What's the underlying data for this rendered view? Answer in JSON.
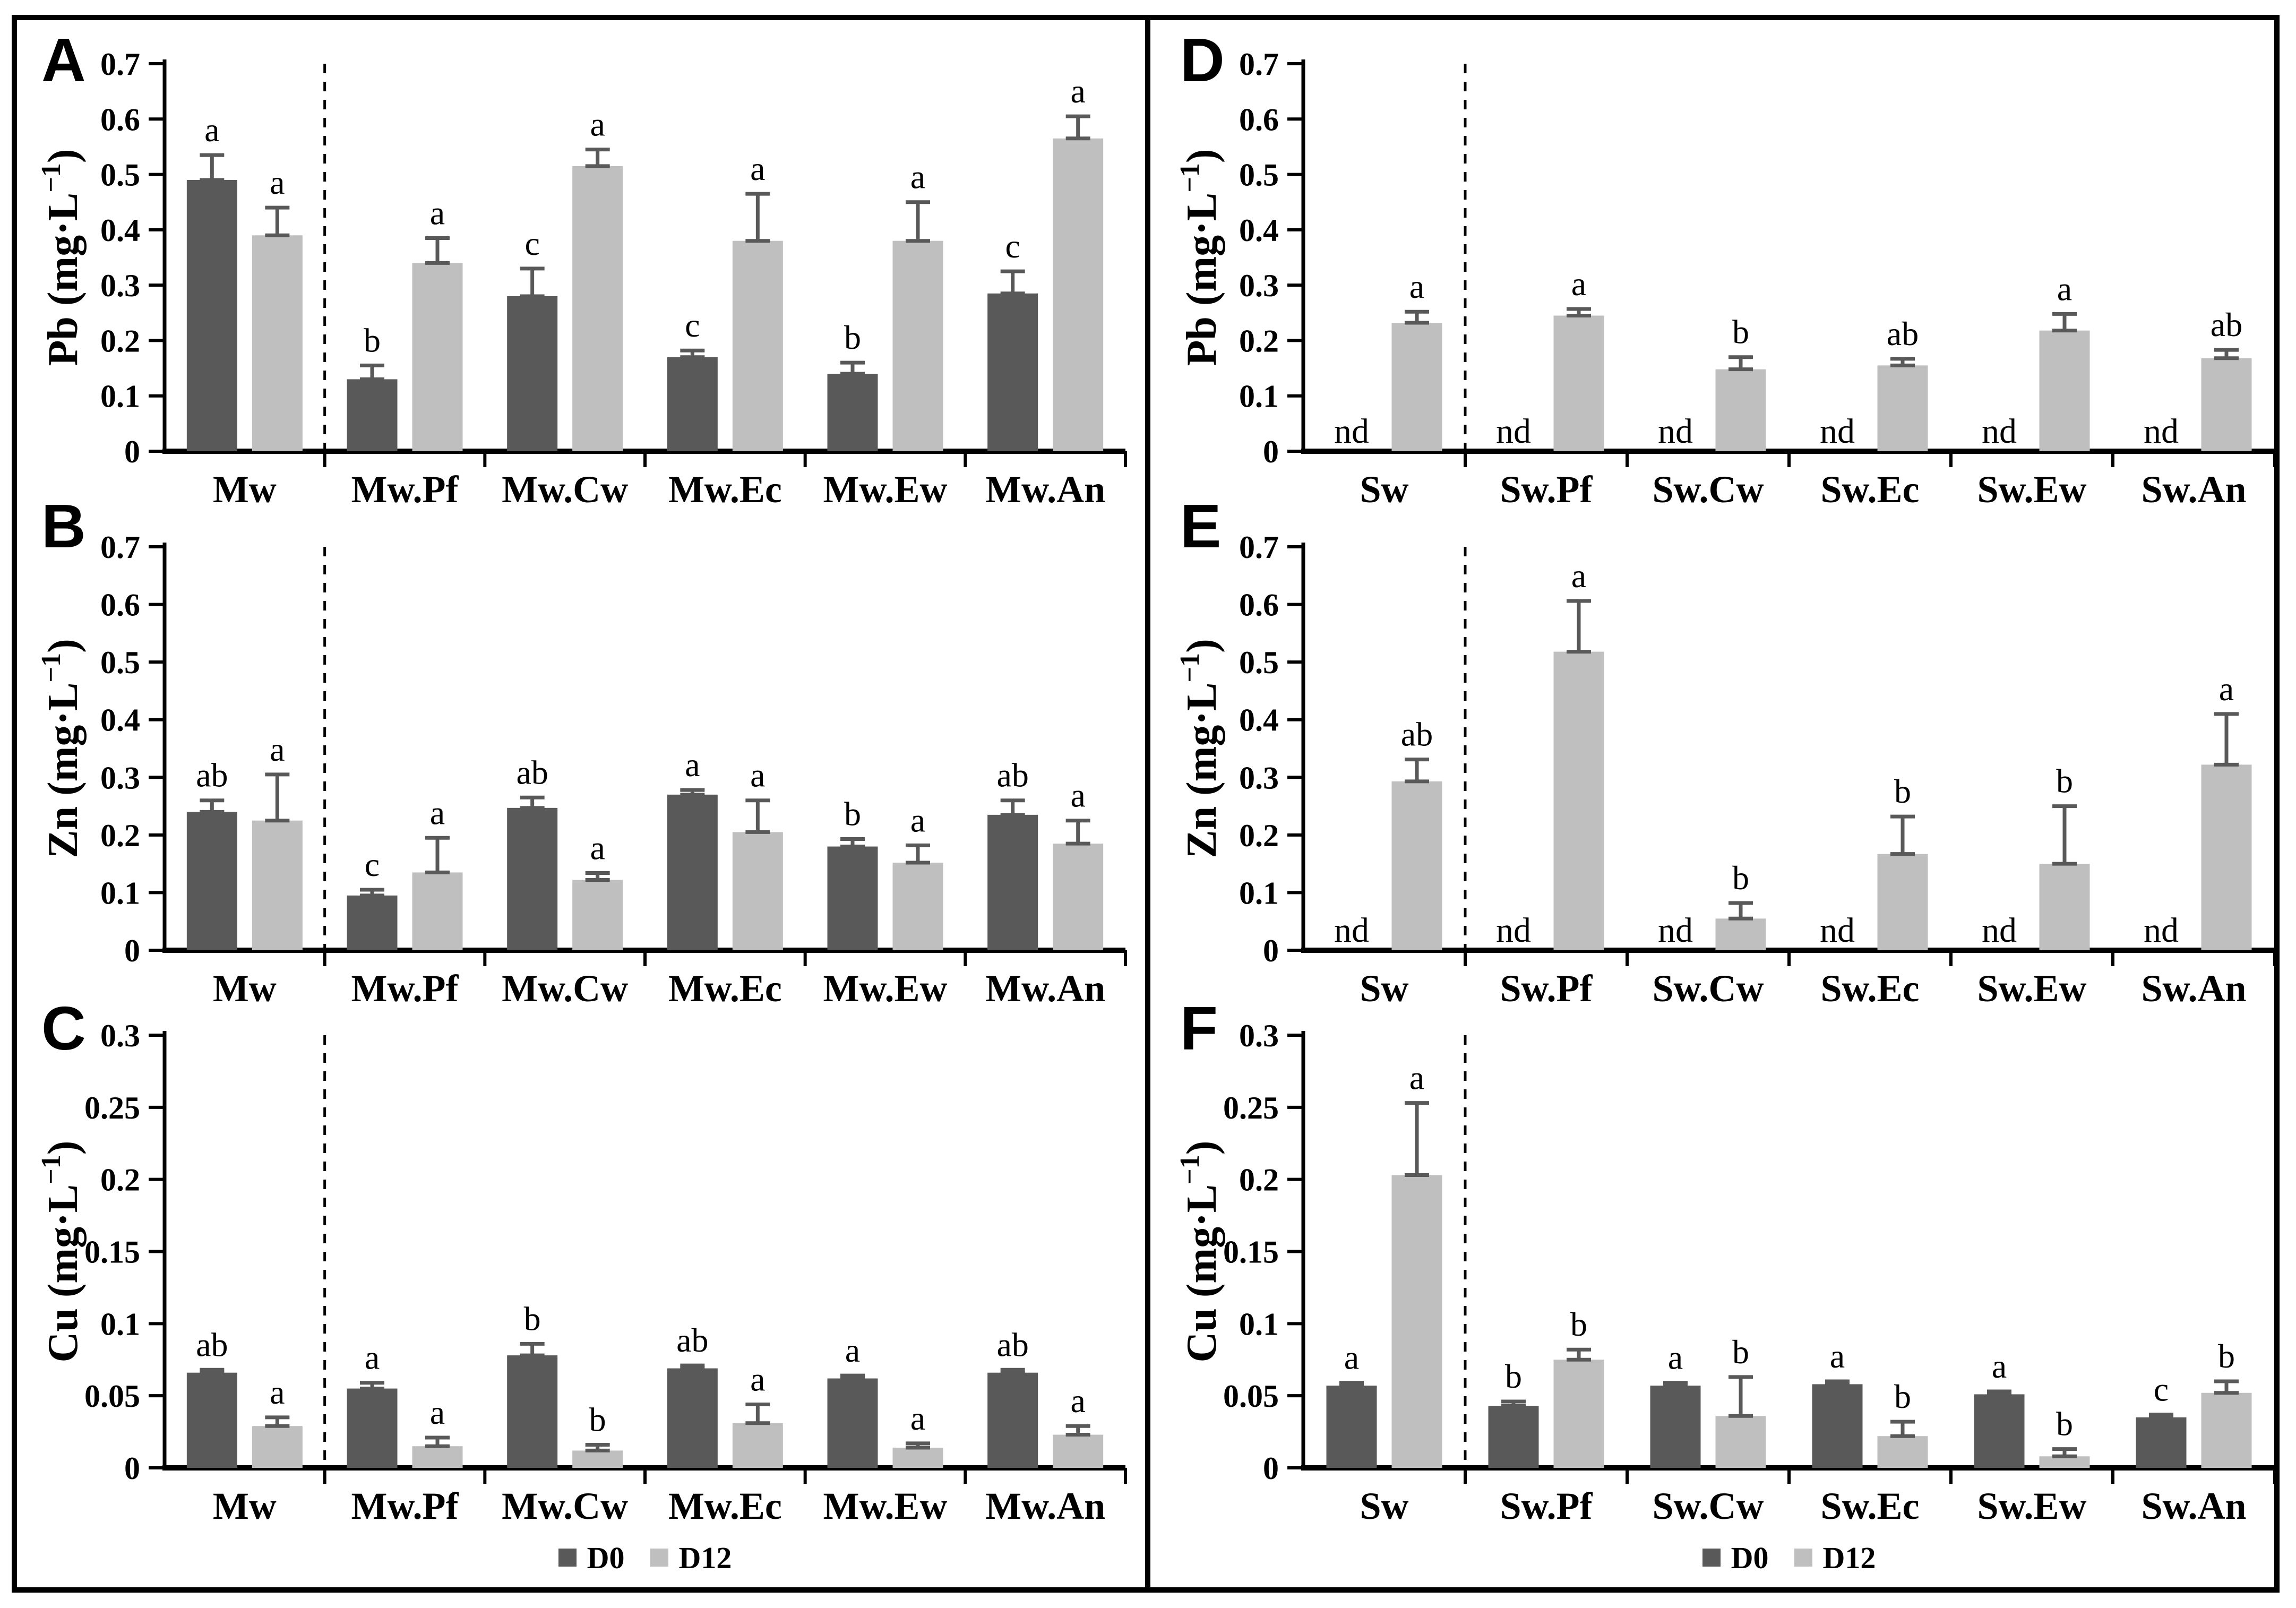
{
  "figure": {
    "legend": {
      "d0": "D0",
      "d12": "D12"
    },
    "colors": {
      "d0": "#595959",
      "d12": "#bfbfbf",
      "error": "#595959",
      "axis": "#000000"
    },
    "nd_label": "nd"
  },
  "chart_data": [
    {
      "type": "bar",
      "panel_letter": "A",
      "ylabel_pre": "Pb (mg·L",
      "ylabel_sup": "−1",
      "ylabel_post": ")",
      "ylim": [
        0,
        0.7
      ],
      "ystep": 0.1,
      "legend_position": "none",
      "grid": false,
      "categories": [
        "Mw",
        "Mw.Pf",
        "Mw.Cw",
        "Mw.Ec",
        "Mw.Ew",
        "Mw.An"
      ],
      "series": [
        {
          "name": "D0",
          "values": [
            0.49,
            0.13,
            0.28,
            0.17,
            0.14,
            0.285
          ],
          "errors": [
            0.045,
            0.025,
            0.05,
            0.012,
            0.02,
            0.04
          ],
          "sig_letters": [
            "a",
            "b",
            "c",
            "c",
            "b",
            "c"
          ]
        },
        {
          "name": "D12",
          "values": [
            0.39,
            0.34,
            0.515,
            0.38,
            0.38,
            0.565
          ],
          "errors": [
            0.05,
            0.045,
            0.03,
            0.085,
            0.07,
            0.04
          ],
          "sig_letters": [
            "a",
            "a",
            "a",
            "a",
            "a",
            "a"
          ]
        }
      ]
    },
    {
      "type": "bar",
      "panel_letter": "B",
      "ylabel_pre": "Zn (mg·L",
      "ylabel_sup": "−1",
      "ylabel_post": ")",
      "ylim": [
        0,
        0.7
      ],
      "ystep": 0.1,
      "legend_position": "none",
      "grid": false,
      "categories": [
        "Mw",
        "Mw.Pf",
        "Mw.Cw",
        "Mw.Ec",
        "Mw.Ew",
        "Mw.An"
      ],
      "series": [
        {
          "name": "D0",
          "values": [
            0.24,
            0.095,
            0.247,
            0.27,
            0.18,
            0.235
          ],
          "errors": [
            0.02,
            0.01,
            0.018,
            0.008,
            0.013,
            0.025
          ],
          "sig_letters": [
            "ab",
            "c",
            "ab",
            "a",
            "b",
            "ab"
          ]
        },
        {
          "name": "D12",
          "values": [
            0.225,
            0.135,
            0.122,
            0.205,
            0.152,
            0.185
          ],
          "errors": [
            0.08,
            0.06,
            0.012,
            0.055,
            0.03,
            0.04
          ],
          "sig_letters": [
            "a",
            "a",
            "a",
            "a",
            "a",
            "a"
          ]
        }
      ]
    },
    {
      "type": "bar",
      "panel_letter": "C",
      "ylabel_pre": "Cu (mg·L",
      "ylabel_sup": "−1",
      "ylabel_post": ")",
      "ylim": [
        0,
        0.3
      ],
      "ystep": 0.05,
      "legend_position": "bottom",
      "grid": false,
      "categories": [
        "Mw",
        "Mw.Pf",
        "Mw.Cw",
        "Mw.Ec",
        "Mw.Ew",
        "Mw.An"
      ],
      "series": [
        {
          "name": "D0",
          "values": [
            0.066,
            0.055,
            0.078,
            0.069,
            0.062,
            0.066
          ],
          "errors": [
            0.002,
            0.004,
            0.008,
            0.002,
            0.002,
            0.002
          ],
          "sig_letters": [
            "ab",
            "a",
            "b",
            "ab",
            "a",
            "ab"
          ]
        },
        {
          "name": "D12",
          "values": [
            0.029,
            0.015,
            0.012,
            0.031,
            0.014,
            0.023
          ],
          "errors": [
            0.006,
            0.006,
            0.004,
            0.013,
            0.003,
            0.006
          ],
          "sig_letters": [
            "a",
            "a",
            "b",
            "a",
            "a",
            "a"
          ]
        }
      ]
    },
    {
      "type": "bar",
      "panel_letter": "D",
      "ylabel_pre": "Pb (mg·L",
      "ylabel_sup": "−1",
      "ylabel_post": ")",
      "ylim": [
        0,
        0.7
      ],
      "ystep": 0.1,
      "legend_position": "none",
      "grid": false,
      "categories": [
        "Sw",
        "Sw.Pf",
        "Sw.Cw",
        "Sw.Ec",
        "Sw.Ew",
        "Sw.An"
      ],
      "series": [
        {
          "name": "D0",
          "values": null,
          "not_detected": true
        },
        {
          "name": "D12",
          "values": [
            0.232,
            0.245,
            0.148,
            0.155,
            0.218,
            0.168
          ],
          "errors": [
            0.02,
            0.012,
            0.022,
            0.012,
            0.03,
            0.015
          ],
          "sig_letters": [
            "a",
            "a",
            "b",
            "ab",
            "a",
            "ab"
          ]
        }
      ]
    },
    {
      "type": "bar",
      "panel_letter": "E",
      "ylabel_pre": "Zn (mg·L",
      "ylabel_sup": "−1",
      "ylabel_post": ")",
      "ylim": [
        0,
        0.7
      ],
      "ystep": 0.1,
      "legend_position": "none",
      "grid": false,
      "categories": [
        "Sw",
        "Sw.Pf",
        "Sw.Cw",
        "Sw.Ec",
        "Sw.Ew",
        "Sw.An"
      ],
      "series": [
        {
          "name": "D0",
          "values": null,
          "not_detected": true
        },
        {
          "name": "D12",
          "values": [
            0.293,
            0.518,
            0.055,
            0.167,
            0.15,
            0.322
          ],
          "errors": [
            0.038,
            0.088,
            0.027,
            0.065,
            0.1,
            0.088
          ],
          "sig_letters": [
            "ab",
            "a",
            "b",
            "b",
            "b",
            "a"
          ]
        }
      ]
    },
    {
      "type": "bar",
      "panel_letter": "F",
      "ylabel_pre": "Cu (mg·L",
      "ylabel_sup": "−1",
      "ylabel_post": ")",
      "ylim": [
        0,
        0.3
      ],
      "ystep": 0.05,
      "legend_position": "bottom",
      "grid": false,
      "categories": [
        "Sw",
        "Sw.Pf",
        "Sw.Cw",
        "Sw.Ec",
        "Sw.Ew",
        "Sw.An"
      ],
      "series": [
        {
          "name": "D0",
          "values": [
            0.057,
            0.043,
            0.057,
            0.058,
            0.051,
            0.035
          ],
          "errors": [
            0.002,
            0.003,
            0.002,
            0.002,
            0.002,
            0.002
          ],
          "sig_letters": [
            "a",
            "b",
            "a",
            "a",
            "a",
            "c"
          ]
        },
        {
          "name": "D12",
          "values": [
            0.203,
            0.075,
            0.036,
            0.022,
            0.008,
            0.052
          ],
          "errors": [
            0.05,
            0.007,
            0.027,
            0.01,
            0.005,
            0.008
          ],
          "sig_letters": [
            "a",
            "b",
            "b",
            "b",
            "b",
            "b"
          ]
        }
      ]
    }
  ]
}
